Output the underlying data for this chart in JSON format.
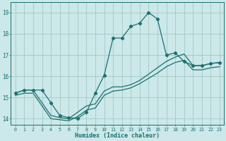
{
  "xlabel": "Humidex (Indice chaleur)",
  "xlim": [
    -0.5,
    23.5
  ],
  "ylim": [
    13.7,
    19.5
  ],
  "xticks": [
    0,
    1,
    2,
    3,
    4,
    5,
    6,
    7,
    8,
    9,
    10,
    11,
    12,
    13,
    14,
    15,
    16,
    17,
    18,
    19,
    20,
    21,
    22,
    23
  ],
  "yticks": [
    14,
    15,
    16,
    17,
    18,
    19
  ],
  "bg_color": "#cce8e8",
  "grid_color": "#aacccc",
  "line_color": "#1a7070",
  "curve1_x": [
    0,
    1,
    2,
    3,
    4,
    5,
    6,
    7,
    8,
    9,
    10,
    11,
    12,
    13,
    14,
    15,
    16,
    17,
    18,
    19,
    20,
    21,
    22,
    23
  ],
  "curve1_y": [
    15.2,
    15.35,
    15.35,
    15.35,
    14.75,
    14.15,
    14.05,
    14.0,
    14.3,
    15.2,
    16.05,
    17.8,
    17.8,
    18.35,
    18.5,
    19.0,
    18.7,
    17.0,
    17.1,
    16.7,
    16.5,
    16.5,
    16.6,
    16.65
  ],
  "curve2_x": [
    0,
    1,
    2,
    3,
    4,
    5,
    6,
    7,
    8,
    9,
    10,
    11,
    12,
    13,
    14,
    15,
    16,
    17,
    18,
    19,
    20,
    21,
    22,
    23
  ],
  "curve2_y": [
    15.2,
    15.35,
    15.35,
    14.75,
    14.15,
    14.05,
    14.0,
    14.3,
    14.6,
    14.7,
    15.3,
    15.5,
    15.5,
    15.6,
    15.8,
    16.1,
    16.4,
    16.7,
    16.9,
    17.05,
    16.5,
    16.5,
    16.6,
    16.65
  ],
  "curve3_x": [
    0,
    1,
    2,
    3,
    4,
    5,
    6,
    7,
    8,
    9,
    10,
    11,
    12,
    13,
    14,
    15,
    16,
    17,
    18,
    19,
    20,
    21,
    22,
    23
  ],
  "curve3_y": [
    15.1,
    15.2,
    15.2,
    14.6,
    14.0,
    13.95,
    13.9,
    14.1,
    14.4,
    14.5,
    15.1,
    15.3,
    15.35,
    15.45,
    15.65,
    15.9,
    16.15,
    16.45,
    16.65,
    16.75,
    16.3,
    16.3,
    16.4,
    16.45
  ]
}
